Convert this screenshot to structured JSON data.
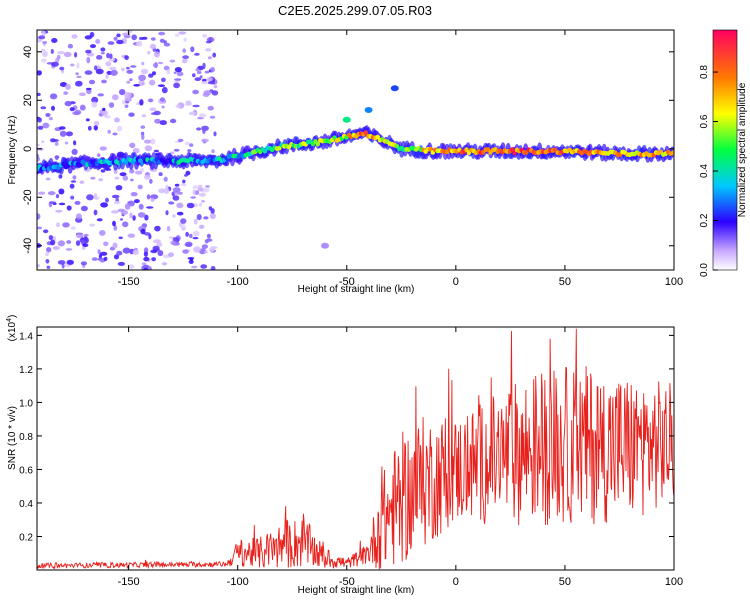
{
  "figure_title": "C2E5.2025.299.07.05.R03",
  "colors": {
    "snr_line": "#e8201c",
    "axis": "#000000"
  },
  "chart_data": [
    {
      "type": "heatmap",
      "name": "spectrogram",
      "xlabel": "Height of straight line (km)",
      "ylabel": "Frequency (Hz)",
      "xlim": [
        -192,
        100
      ],
      "ylim": [
        -50,
        49
      ],
      "x_ticks": [
        -150,
        -100,
        -50,
        0,
        50,
        100
      ],
      "y_ticks": [
        -40,
        -20,
        0,
        20,
        40
      ],
      "colorbar": {
        "label": "Normalized spectral amplitude",
        "range": [
          0,
          0.97
        ],
        "ticks": [
          0.0,
          0.2,
          0.4,
          0.6,
          0.8
        ],
        "tick_labels": [
          "0.0",
          "0.2",
          "0.4",
          "0.6",
          "0.8"
        ]
      },
      "ridge": [
        {
          "x": -192,
          "f": -8,
          "amp": 0.25
        },
        {
          "x": -170,
          "f": -6,
          "amp": 0.3
        },
        {
          "x": -150,
          "f": -5,
          "amp": 0.3
        },
        {
          "x": -130,
          "f": -5,
          "amp": 0.3
        },
        {
          "x": -110,
          "f": -5,
          "amp": 0.35
        },
        {
          "x": -100,
          "f": -3,
          "amp": 0.4
        },
        {
          "x": -90,
          "f": -1,
          "amp": 0.45
        },
        {
          "x": -80,
          "f": 1,
          "amp": 0.5
        },
        {
          "x": -70,
          "f": 2,
          "amp": 0.55
        },
        {
          "x": -60,
          "f": 3,
          "amp": 0.55
        },
        {
          "x": -50,
          "f": 5,
          "amp": 0.65
        },
        {
          "x": -42,
          "f": 6.5,
          "amp": 0.8
        },
        {
          "x": -35,
          "f": 4,
          "amp": 0.6
        },
        {
          "x": -25,
          "f": 0,
          "amp": 0.55
        },
        {
          "x": -10,
          "f": -1,
          "amp": 0.7
        },
        {
          "x": 0,
          "f": -1,
          "amp": 0.8
        },
        {
          "x": 25,
          "f": -1,
          "amp": 0.85
        },
        {
          "x": 50,
          "f": -1,
          "amp": 0.8
        },
        {
          "x": 75,
          "f": -2,
          "amp": 0.75
        },
        {
          "x": 100,
          "f": -2,
          "amp": 0.7
        }
      ],
      "blobs": [
        {
          "x": -50,
          "f": 12,
          "amp": 0.45
        },
        {
          "x": -40,
          "f": 16,
          "amp": 0.3
        },
        {
          "x": -28,
          "f": 25,
          "amp": 0.25
        },
        {
          "x": -60,
          "f": -40,
          "amp": 0.1
        }
      ]
    },
    {
      "type": "line",
      "name": "snr",
      "xlabel": "Height of straight line (km)",
      "ylabel": "SNR (10 * v/v)",
      "y_multiplier": "(x10",
      "y_multiplier_exp": "4",
      "xlim": [
        -192,
        100
      ],
      "ylim": [
        0,
        1.45
      ],
      "x_ticks": [
        -150,
        -100,
        -50,
        0,
        50,
        100
      ],
      "y_ticks": [
        0.2,
        0.4,
        0.6,
        0.8,
        1.0,
        1.2,
        1.4
      ],
      "y_tick_labels": [
        "0.2",
        "0.4",
        "0.6",
        "0.8",
        "1.0",
        "1.2",
        "1.4"
      ],
      "envelope": [
        {
          "x": -192,
          "base": 0.02,
          "spread": 0.02
        },
        {
          "x": -105,
          "base": 0.03,
          "spread": 0.02
        },
        {
          "x": -100,
          "base": 0.08,
          "spread": 0.1
        },
        {
          "x": -90,
          "base": 0.07,
          "spread": 0.12
        },
        {
          "x": -80,
          "base": 0.1,
          "spread": 0.18
        },
        {
          "x": -70,
          "base": 0.12,
          "spread": 0.2
        },
        {
          "x": -60,
          "base": 0.05,
          "spread": 0.08
        },
        {
          "x": -50,
          "base": 0.03,
          "spread": 0.04
        },
        {
          "x": -40,
          "base": 0.08,
          "spread": 0.08
        },
        {
          "x": -35,
          "base": 0.18,
          "spread": 0.35
        },
        {
          "x": -25,
          "base": 0.3,
          "spread": 0.5
        },
        {
          "x": -15,
          "base": 0.4,
          "spread": 0.5
        },
        {
          "x": 0,
          "base": 0.5,
          "spread": 0.4
        },
        {
          "x": 20,
          "base": 0.55,
          "spread": 0.5
        },
        {
          "x": 40,
          "base": 0.6,
          "spread": 0.6
        },
        {
          "x": 60,
          "base": 0.6,
          "spread": 0.6
        },
        {
          "x": 80,
          "base": 0.6,
          "spread": 0.55
        },
        {
          "x": 100,
          "base": 0.65,
          "spread": 0.45
        }
      ]
    }
  ]
}
